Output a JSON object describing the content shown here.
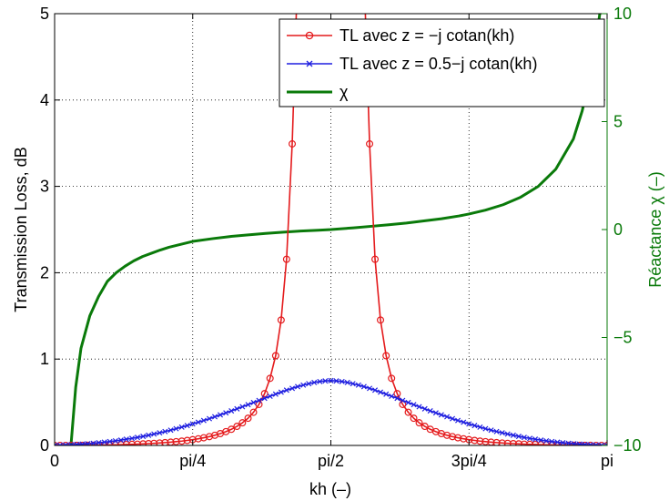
{
  "chart_data": {
    "type": "line",
    "title": "",
    "xlabel": "kh (–)",
    "ylabel": "Transmission Loss, dB",
    "y2label": "Réactance χ (–)",
    "xlim": [
      0,
      3.14159
    ],
    "ylim": [
      0,
      5
    ],
    "y2lim": [
      -10,
      10
    ],
    "grid": true,
    "legend_position": "top-right",
    "x_ticks": [
      {
        "value": 0,
        "label": "0"
      },
      {
        "value": 0.785398,
        "label": "pi/4"
      },
      {
        "value": 1.570796,
        "label": "pi/2"
      },
      {
        "value": 2.356194,
        "label": "3pi/4"
      },
      {
        "value": 3.141593,
        "label": "pi"
      }
    ],
    "y_ticks": [
      {
        "value": 0,
        "label": "0"
      },
      {
        "value": 1,
        "label": "1"
      },
      {
        "value": 2,
        "label": "2"
      },
      {
        "value": 3,
        "label": "3"
      },
      {
        "value": 4,
        "label": "4"
      },
      {
        "value": 5,
        "label": "5"
      }
    ],
    "y2_ticks": [
      {
        "value": -10,
        "label": "−10"
      },
      {
        "value": -5,
        "label": "−5"
      },
      {
        "value": 0,
        "label": "0"
      },
      {
        "value": 5,
        "label": "5"
      },
      {
        "value": 10,
        "label": "10"
      }
    ],
    "series": [
      {
        "name": "TL avec z = −j cotan(kh)",
        "color": "#e41a1c",
        "marker": "circle",
        "axis": "left",
        "x": [
          0.0,
          0.031,
          0.063,
          0.094,
          0.126,
          0.157,
          0.188,
          0.22,
          0.251,
          0.283,
          0.314,
          0.346,
          0.377,
          0.408,
          0.44,
          0.471,
          0.503,
          0.534,
          0.565,
          0.597,
          0.628,
          0.66,
          0.691,
          0.723,
          0.754,
          0.785,
          0.817,
          0.848,
          0.88,
          0.911,
          0.942,
          0.974,
          1.005,
          1.037,
          1.068,
          1.1,
          1.131,
          1.162,
          1.194,
          1.225,
          1.257,
          1.288,
          1.319,
          1.351,
          1.382,
          1.414,
          1.445,
          1.476,
          1.508,
          1.539,
          1.602,
          1.634,
          1.665,
          1.696,
          1.728,
          1.759,
          1.791,
          1.822,
          1.853,
          1.885,
          1.916,
          1.948,
          1.979,
          2.011,
          2.042,
          2.073,
          2.105,
          2.136,
          2.168,
          2.199,
          2.231,
          2.262,
          2.293,
          2.325,
          2.356,
          2.388,
          2.419,
          2.45,
          2.482,
          2.513,
          2.545,
          2.576,
          2.608,
          2.639,
          2.67,
          2.702,
          2.733,
          2.765,
          2.796,
          2.827,
          2.859,
          2.89,
          2.922,
          2.953,
          2.985,
          3.016,
          3.047,
          3.079,
          3.11,
          3.142
        ],
        "y": [
          0.0,
          0.0,
          0.0,
          0.001,
          0.001,
          0.001,
          0.002,
          0.003,
          0.004,
          0.005,
          0.006,
          0.007,
          0.009,
          0.011,
          0.013,
          0.015,
          0.018,
          0.021,
          0.024,
          0.028,
          0.033,
          0.038,
          0.044,
          0.05,
          0.058,
          0.067,
          0.077,
          0.089,
          0.102,
          0.118,
          0.137,
          0.16,
          0.187,
          0.221,
          0.262,
          0.315,
          0.384,
          0.475,
          0.6,
          0.777,
          1.039,
          1.452,
          2.156,
          3.492,
          5.5,
          5.5,
          5.5,
          5.5,
          5.5,
          5.5,
          5.5,
          5.5,
          5.5,
          5.5,
          5.5,
          5.5,
          3.492,
          2.156,
          1.452,
          1.039,
          0.777,
          0.6,
          0.475,
          0.384,
          0.315,
          0.262,
          0.221,
          0.187,
          0.16,
          0.137,
          0.118,
          0.102,
          0.089,
          0.077,
          0.067,
          0.058,
          0.05,
          0.044,
          0.038,
          0.033,
          0.028,
          0.024,
          0.021,
          0.018,
          0.015,
          0.013,
          0.011,
          0.009,
          0.007,
          0.006,
          0.005,
          0.004,
          0.003,
          0.002,
          0.001,
          0.001,
          0.001,
          0.0,
          0.0,
          0.0
        ]
      },
      {
        "name": "TL avec z = 0.5−j cotan(kh)",
        "color": "#1f1fe0",
        "marker": "x",
        "axis": "left",
        "x": [
          0.0,
          0.031,
          0.063,
          0.094,
          0.126,
          0.157,
          0.188,
          0.22,
          0.251,
          0.283,
          0.314,
          0.346,
          0.377,
          0.408,
          0.44,
          0.471,
          0.503,
          0.534,
          0.565,
          0.597,
          0.628,
          0.66,
          0.691,
          0.723,
          0.754,
          0.785,
          0.817,
          0.848,
          0.88,
          0.911,
          0.942,
          0.974,
          1.005,
          1.037,
          1.068,
          1.1,
          1.131,
          1.162,
          1.194,
          1.225,
          1.257,
          1.288,
          1.319,
          1.351,
          1.382,
          1.414,
          1.445,
          1.476,
          1.508,
          1.539,
          1.571,
          1.602,
          1.634,
          1.665,
          1.696,
          1.728,
          1.759,
          1.791,
          1.822,
          1.853,
          1.885,
          1.916,
          1.948,
          1.979,
          2.011,
          2.042,
          2.073,
          2.105,
          2.136,
          2.168,
          2.199,
          2.231,
          2.262,
          2.293,
          2.325,
          2.356,
          2.388,
          2.419,
          2.45,
          2.482,
          2.513,
          2.545,
          2.576,
          2.608,
          2.639,
          2.67,
          2.702,
          2.733,
          2.765,
          2.796,
          2.827,
          2.859,
          2.89,
          2.922,
          2.953,
          2.985,
          3.016,
          3.047,
          3.079,
          3.11,
          3.142
        ],
        "y": [
          0.0,
          0.002,
          0.005,
          0.008,
          0.011,
          0.015,
          0.02,
          0.025,
          0.031,
          0.038,
          0.045,
          0.053,
          0.062,
          0.072,
          0.082,
          0.093,
          0.105,
          0.118,
          0.132,
          0.146,
          0.161,
          0.177,
          0.194,
          0.212,
          0.23,
          0.249,
          0.269,
          0.289,
          0.31,
          0.332,
          0.354,
          0.377,
          0.4,
          0.424,
          0.448,
          0.472,
          0.497,
          0.521,
          0.546,
          0.57,
          0.594,
          0.617,
          0.64,
          0.661,
          0.681,
          0.699,
          0.715,
          0.729,
          0.74,
          0.747,
          0.751,
          0.747,
          0.74,
          0.729,
          0.715,
          0.699,
          0.681,
          0.661,
          0.64,
          0.617,
          0.594,
          0.57,
          0.546,
          0.521,
          0.497,
          0.472,
          0.448,
          0.424,
          0.4,
          0.377,
          0.354,
          0.332,
          0.31,
          0.289,
          0.269,
          0.249,
          0.23,
          0.212,
          0.194,
          0.177,
          0.161,
          0.146,
          0.132,
          0.118,
          0.105,
          0.093,
          0.082,
          0.072,
          0.062,
          0.053,
          0.045,
          0.038,
          0.031,
          0.025,
          0.02,
          0.015,
          0.011,
          0.008,
          0.005,
          0.002,
          0.0
        ]
      },
      {
        "name": "χ",
        "color": "#0a7a0a",
        "marker": "none",
        "axis": "right",
        "x": [
          0.093,
          0.1,
          0.12,
          0.15,
          0.2,
          0.25,
          0.3,
          0.35,
          0.4,
          0.45,
          0.5,
          0.55,
          0.6,
          0.65,
          0.7,
          0.785,
          0.9,
          1.0,
          1.1,
          1.2,
          1.3,
          1.4,
          1.5,
          1.571,
          1.7,
          1.8,
          1.9,
          2.0,
          2.1,
          2.2,
          2.3,
          2.356,
          2.45,
          2.55,
          2.65,
          2.75,
          2.85,
          2.95,
          3.0,
          3.05,
          3.08,
          3.1
        ],
        "y": [
          -10.0,
          -9.3,
          -7.3,
          -5.5,
          -4.0,
          -3.1,
          -2.4,
          -2.0,
          -1.7,
          -1.45,
          -1.25,
          -1.1,
          -0.95,
          -0.82,
          -0.72,
          -0.55,
          -0.42,
          -0.32,
          -0.25,
          -0.18,
          -0.12,
          -0.07,
          -0.03,
          0.0,
          0.08,
          0.15,
          0.22,
          0.3,
          0.4,
          0.5,
          0.63,
          0.72,
          0.9,
          1.15,
          1.5,
          2.0,
          2.8,
          4.2,
          5.5,
          7.3,
          8.8,
          10.0
        ]
      }
    ]
  }
}
